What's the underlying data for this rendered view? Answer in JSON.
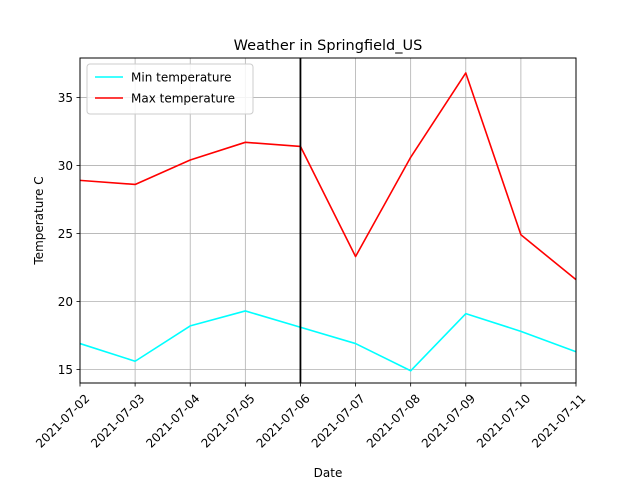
{
  "chart_data": {
    "type": "line",
    "title": "Weather in Springfield_US",
    "xlabel": "Date",
    "ylabel": "Temperature C",
    "x": [
      "2021-07-02",
      "2021-07-03",
      "2021-07-04",
      "2021-07-05",
      "2021-07-06",
      "2021-07-07",
      "2021-07-08",
      "2021-07-09",
      "2021-07-10",
      "2021-07-11"
    ],
    "xlim": [
      "2021-07-02",
      "2021-07-11"
    ],
    "ylim": [
      14.0,
      37.9
    ],
    "yticks": [
      15,
      20,
      25,
      30,
      35
    ],
    "grid": true,
    "legend_position": "top-left",
    "vline_x": "2021-07-06",
    "vline_color": "#000000",
    "series": [
      {
        "name": "Min temperature",
        "color": "#00ffff",
        "values": [
          16.9,
          15.6,
          18.2,
          19.3,
          18.1,
          16.9,
          14.9,
          19.1,
          17.8,
          16.3
        ]
      },
      {
        "name": "Max temperature",
        "color": "#ff0000",
        "values": [
          28.9,
          28.6,
          30.4,
          31.7,
          31.4,
          23.3,
          30.6,
          36.8,
          24.9,
          21.6
        ]
      }
    ]
  }
}
